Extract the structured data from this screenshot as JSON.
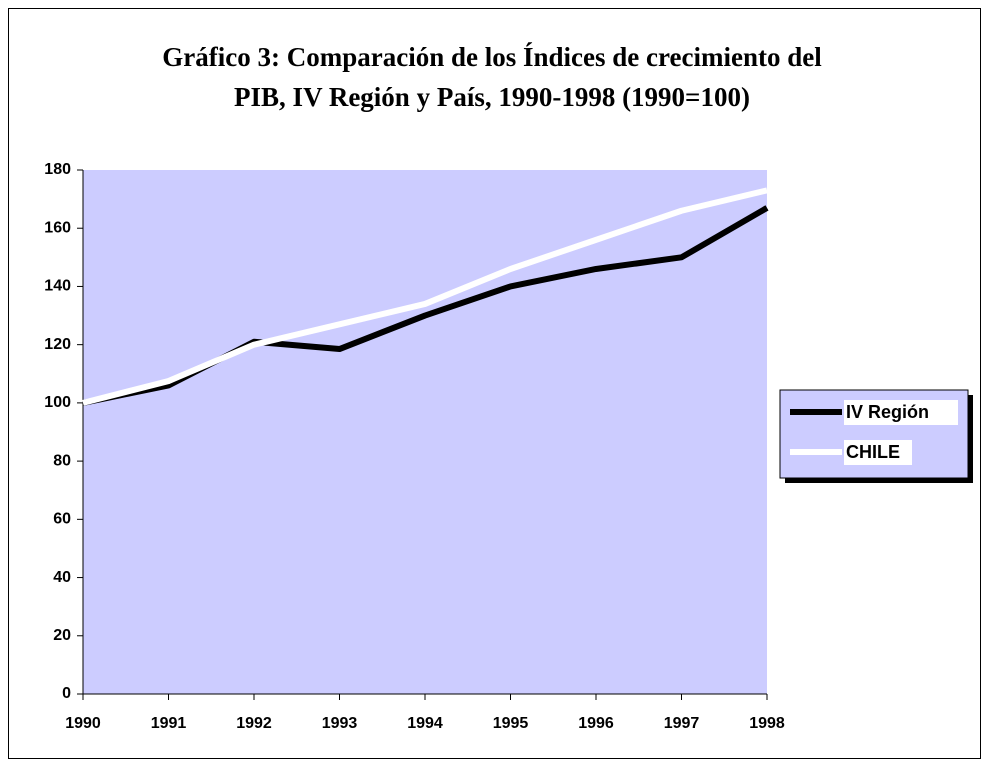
{
  "chart_data": {
    "type": "line",
    "title": [
      "Gráfico 3: Comparación de los Índices de crecimiento del",
      "PIB, IV Región y País, 1990-1998 (1990=100)"
    ],
    "categories": [
      "1990",
      "1991",
      "1992",
      "1993",
      "1994",
      "1995",
      "1996",
      "1997",
      "1998"
    ],
    "series": [
      {
        "name": "IV Región",
        "color": "#000000",
        "values": [
          100,
          106,
          121,
          118.5,
          130,
          140,
          146,
          150,
          167
        ]
      },
      {
        "name": "CHILE",
        "color": "#ffffff",
        "values": [
          100,
          107.5,
          120,
          127,
          134,
          146,
          156,
          166,
          173
        ]
      }
    ],
    "ylim": [
      0,
      180
    ],
    "yticks": [
      0,
      20,
      40,
      60,
      80,
      100,
      120,
      140,
      160,
      180
    ],
    "plot_background": "#ccccff",
    "legend": "right"
  }
}
